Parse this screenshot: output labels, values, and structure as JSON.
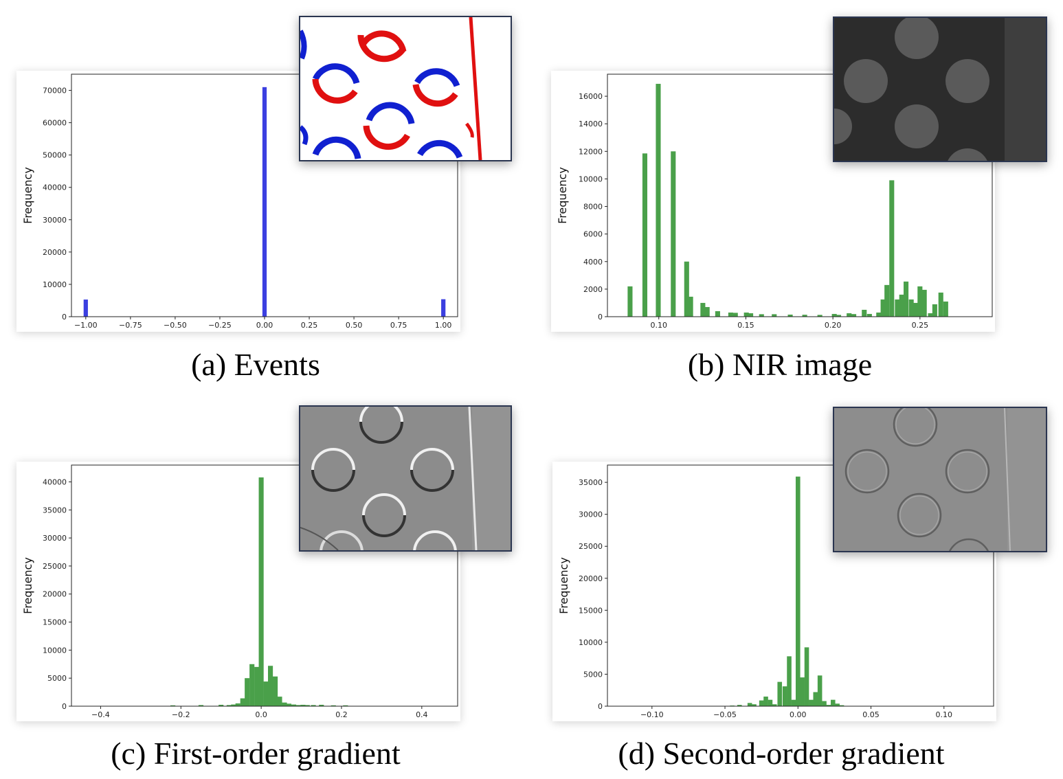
{
  "chart_data": [
    {
      "type": "bar",
      "caption": "(a) Events",
      "ylabel": "Frequency",
      "xlim": [
        -1.08,
        1.08
      ],
      "ylim": [
        0,
        75000
      ],
      "xticks": [
        -1.0,
        -0.75,
        -0.5,
        -0.25,
        0.0,
        0.25,
        0.5,
        0.75,
        1.0
      ],
      "xtick_labels": [
        "−1.00",
        "−0.75",
        "−0.50",
        "−0.25",
        "0.00",
        "0.25",
        "0.50",
        "0.75",
        "1.00"
      ],
      "yticks": [
        0,
        10000,
        20000,
        30000,
        40000,
        50000,
        60000,
        70000
      ],
      "ytick_labels": [
        "0",
        "10000",
        "20000",
        "30000",
        "40000",
        "50000",
        "60000",
        "70000"
      ],
      "bar_width": 0.024,
      "color": "#3b3fe0",
      "x": [
        -1.0,
        0.0,
        1.0
      ],
      "values": [
        5300,
        71000,
        5400
      ]
    },
    {
      "type": "bar",
      "caption": "(b) NIR image",
      "ylabel": "Frequency",
      "xlim": [
        0.0705,
        0.2915
      ],
      "ylim": [
        0,
        17600
      ],
      "xticks": [
        0.1,
        0.15,
        0.2,
        0.25
      ],
      "xtick_labels": [
        "0.10",
        "0.15",
        "0.20",
        "0.25"
      ],
      "yticks": [
        0,
        2000,
        4000,
        6000,
        8000,
        10000,
        12000,
        14000,
        16000
      ],
      "ytick_labels": [
        "0",
        "2000",
        "4000",
        "6000",
        "8000",
        "10000",
        "12000",
        "14000",
        "16000"
      ],
      "bar_width": 0.0028,
      "color": "#4aa04a",
      "x": [
        0.0835,
        0.092,
        0.0997,
        0.1083,
        0.116,
        0.1183,
        0.1253,
        0.1278,
        0.1338,
        0.1413,
        0.144,
        0.1503,
        0.1528,
        0.159,
        0.1663,
        0.1755,
        0.1838,
        0.1925,
        0.2008,
        0.2033,
        0.2093,
        0.212,
        0.218,
        0.221,
        0.2263,
        0.2288,
        0.231,
        0.2338,
        0.237,
        0.2395,
        0.242,
        0.245,
        0.2475,
        0.25,
        0.2525,
        0.256,
        0.2585,
        0.262,
        0.2648
      ],
      "values": [
        2200,
        11850,
        16900,
        12000,
        4000,
        1450,
        1000,
        700,
        400,
        300,
        280,
        300,
        250,
        180,
        180,
        150,
        140,
        130,
        200,
        130,
        250,
        190,
        500,
        200,
        300,
        1250,
        2300,
        9900,
        1250,
        1600,
        2550,
        1250,
        1000,
        2200,
        1950,
        250,
        900,
        1750,
        1100
      ]
    },
    {
      "type": "bar",
      "caption": "(c) First-order gradient",
      "ylabel": "Frequency",
      "xlim": [
        -0.4726,
        0.4893
      ],
      "ylim": [
        0,
        43000
      ],
      "xticks": [
        -0.4,
        -0.2,
        0.0,
        0.2,
        0.4
      ],
      "xtick_labels": [
        "−0.4",
        "−0.2",
        "0.0",
        "0.2",
        "0.4"
      ],
      "yticks": [
        0,
        5000,
        10000,
        15000,
        20000,
        25000,
        30000,
        35000,
        40000
      ],
      "ytick_labels": [
        "0",
        "5000",
        "10000",
        "15000",
        "20000",
        "25000",
        "30000",
        "35000",
        "40000"
      ],
      "bar_width": 0.0122,
      "color": "#4aa04a",
      "x": [
        -0.22,
        -0.15,
        -0.1,
        -0.08,
        -0.069,
        -0.058,
        -0.046,
        -0.035,
        -0.023,
        -0.011,
        0.0,
        0.012,
        0.023,
        0.035,
        0.046,
        0.058,
        0.069,
        0.081,
        0.092,
        0.104,
        0.115,
        0.13,
        0.15,
        0.18,
        0.21
      ],
      "values": [
        150,
        200,
        250,
        200,
        300,
        500,
        1400,
        5000,
        7500,
        7000,
        40800,
        4400,
        7200,
        5300,
        1700,
        650,
        450,
        300,
        200,
        250,
        200,
        200,
        250,
        150,
        150
      ]
    },
    {
      "type": "bar",
      "caption": "(d) Second-order gradient",
      "ylabel": "Frequency",
      "xlim": [
        -0.1305,
        0.134
      ],
      "ylim": [
        0,
        37700
      ],
      "xticks": [
        -0.1,
        -0.05,
        0.0,
        0.05,
        0.1
      ],
      "xtick_labels": [
        "−0.10",
        "−0.05",
        "0.00",
        "0.05",
        "0.10"
      ],
      "yticks": [
        0,
        5000,
        10000,
        15000,
        20000,
        25000,
        30000,
        35000
      ],
      "ytick_labels": [
        "0",
        "5000",
        "10000",
        "15000",
        "20000",
        "25000",
        "30000",
        "35000"
      ],
      "bar_width": 0.0031,
      "color": "#4aa04a",
      "x": [
        -0.045,
        -0.04,
        -0.033,
        -0.03,
        -0.025,
        -0.022,
        -0.019,
        -0.016,
        -0.0125,
        -0.009,
        -0.006,
        -0.003,
        0.0,
        0.003,
        0.006,
        0.009,
        0.012,
        0.015,
        0.018,
        0.021,
        0.024,
        0.027,
        0.03
      ],
      "values": [
        100,
        200,
        500,
        300,
        900,
        1500,
        1000,
        300,
        3800,
        3100,
        7800,
        1000,
        35900,
        4500,
        9200,
        1000,
        2200,
        4800,
        800,
        200,
        1000,
        400,
        150
      ]
    }
  ]
}
